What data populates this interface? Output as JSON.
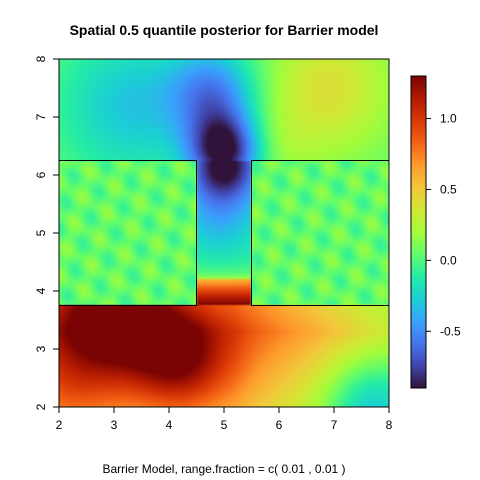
{
  "chart_data": {
    "type": "heatmap",
    "title": "Spatial 0.5 quantile posterior for Barrier model",
    "xlabel": "Barrier Model, range.fraction = c( 0.01 ,  0.01 )",
    "ylabel": "",
    "xlim": [
      2,
      8
    ],
    "ylim": [
      2,
      8
    ],
    "x_ticks": [
      "2",
      "3",
      "4",
      "5",
      "6",
      "7",
      "8"
    ],
    "y_ticks": [
      "2",
      "3",
      "4",
      "5",
      "6",
      "7",
      "8"
    ],
    "colorbar": {
      "range": [
        -0.9,
        1.3
      ],
      "ticks": [
        "-0.5",
        "0.0",
        "0.5",
        "1.0"
      ],
      "tick_values": [
        -0.5,
        0.0,
        0.5,
        1.0
      ],
      "palette": [
        "#30123b",
        "#4145ab",
        "#4675ed",
        "#39a2fc",
        "#1bcfd4",
        "#24eca6",
        "#61fc6c",
        "#a4fc3b",
        "#d1e834",
        "#f3c63a",
        "#fe9b2d",
        "#f36315",
        "#d93806",
        "#b11901",
        "#7a0403"
      ]
    },
    "barriers": [
      {
        "x": [
          2.0,
          4.5
        ],
        "y": [
          3.75,
          6.25
        ]
      },
      {
        "x": [
          5.5,
          8.0
        ],
        "y": [
          3.75,
          6.25
        ]
      }
    ],
    "field_features": [
      {
        "x": 3.0,
        "y": 3.6,
        "value": 1.25
      },
      {
        "x": 4.2,
        "y": 2.8,
        "value": 1.1
      },
      {
        "x": 5.0,
        "y": 6.3,
        "value": -0.85
      },
      {
        "x": 4.8,
        "y": 7.4,
        "value": -0.65
      },
      {
        "x": 6.8,
        "y": 7.5,
        "value": 0.35
      },
      {
        "x": 7.6,
        "y": 2.2,
        "value": -0.3
      },
      {
        "x": 3.2,
        "y": 7.3,
        "value": -0.3
      }
    ]
  }
}
